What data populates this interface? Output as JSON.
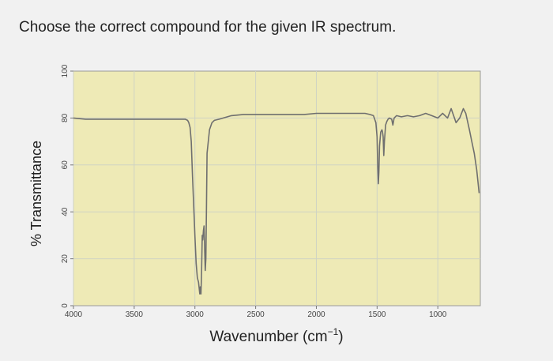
{
  "question": "Choose the correct compound for the given IR spectrum.",
  "chart_data": {
    "type": "line",
    "title": "",
    "xlabel": "Wavenumber (cm",
    "xlabel_sup": "−1",
    "xlabel_close": ")",
    "ylabel": "% Transmittance",
    "xlim": [
      4000,
      650
    ],
    "ylim": [
      0,
      100
    ],
    "x_reversed": true,
    "x_ticks": [
      4000,
      3500,
      3000,
      2500,
      2000,
      1500,
      1000
    ],
    "y_ticks": [
      0,
      20,
      40,
      60,
      80,
      100
    ],
    "grid": true,
    "colors": {
      "plot_bg": "#eeeab6",
      "line": "#6f6f6f",
      "grid": "#cfd3c4"
    },
    "series": [
      {
        "x": [
          4000,
          3900,
          3700,
          3500,
          3300,
          3150,
          3100,
          3080,
          3060,
          3050,
          3040,
          3030,
          3020,
          3000,
          2990,
          2980,
          2970,
          2960,
          2955,
          2950,
          2945,
          2940,
          2935,
          2930,
          2925,
          2920,
          2915,
          2910,
          2905,
          2900,
          2880,
          2860,
          2840,
          2800,
          2700,
          2600,
          2500,
          2400,
          2300,
          2200,
          2100,
          2000,
          1900,
          1800,
          1700,
          1600,
          1560,
          1530,
          1510,
          1500,
          1495,
          1490,
          1485,
          1480,
          1470,
          1460,
          1455,
          1450,
          1445,
          1440,
          1430,
          1420,
          1410,
          1400,
          1380,
          1370,
          1360,
          1340,
          1300,
          1250,
          1200,
          1150,
          1100,
          1050,
          1000,
          960,
          920,
          890,
          870,
          850,
          820,
          790,
          770,
          740,
          720,
          700,
          680,
          660
        ],
        "y": [
          80,
          79.5,
          79.5,
          79.5,
          79.5,
          79.5,
          79.5,
          79.5,
          79,
          78,
          76,
          70,
          55,
          30,
          18,
          12,
          10,
          5,
          8,
          5,
          15,
          30,
          28,
          32,
          34,
          25,
          15,
          20,
          40,
          65,
          75,
          78,
          79,
          79.5,
          81,
          81.5,
          81.5,
          81.5,
          81.5,
          81.5,
          81.5,
          82,
          82,
          82,
          82,
          82,
          81.5,
          81,
          78,
          72,
          60,
          52,
          57,
          68,
          74,
          75,
          74,
          72,
          64,
          70,
          77,
          78.5,
          79.5,
          80,
          79.5,
          77,
          80,
          81,
          80.5,
          81,
          80.5,
          81,
          82,
          81,
          80,
          82,
          80,
          84,
          81,
          78,
          80,
          84,
          82,
          75,
          70,
          65,
          58,
          48
        ]
      }
    ]
  }
}
